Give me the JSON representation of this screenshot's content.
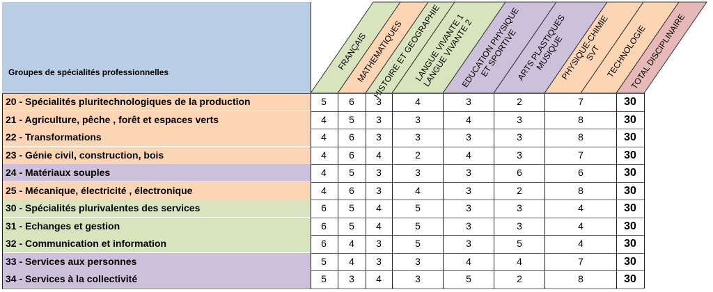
{
  "header": {
    "row_label": "Groupes de spécialités professionnelles",
    "columns": [
      {
        "lines": [
          "FRANÇAIS"
        ],
        "color": "#d7e4bd"
      },
      {
        "lines": [
          "MATHEMATIQUES"
        ],
        "color": "#fcd5b4"
      },
      {
        "lines": [
          "HISTOIRE ET GEOGRAPHIE"
        ],
        "color": "#d7e4bd"
      },
      {
        "lines": [
          "LANGUE VIVANTE 1",
          "LANGUE VIVANTE 2"
        ],
        "color": "#d7e4bd"
      },
      {
        "lines": [
          "EDUCATION PHYSIQUE",
          "ET SPORTIVE"
        ],
        "color": "#ccc0da"
      },
      {
        "lines": [
          "ARTS PLASTIQUES",
          "MUSIQUE"
        ],
        "color": "#ccc0da"
      },
      {
        "lines": [
          "PHYSIQUE-CHIMIE",
          "SVT"
        ],
        "color": "#fcd5b4"
      },
      {
        "lines": [
          "TECHNOLOGIE"
        ],
        "color": "#fcd5b4"
      },
      {
        "lines": [
          "TOTAL DISCIPLINAIRE"
        ],
        "color": "#e6b9b8"
      }
    ]
  },
  "rows": [
    {
      "label": "20 - Spécialités pluritechnologiques de la production",
      "color": "#fcd5b4",
      "values": [
        "5",
        "6",
        "3",
        "4",
        "3",
        "2",
        "7",
        "30"
      ]
    },
    {
      "label": "21 - Agriculture, pêche , forêt et espaces verts",
      "color": "#fcd5b4",
      "values": [
        "4",
        "5",
        "3",
        "3",
        "4",
        "3",
        "8",
        "30"
      ]
    },
    {
      "label": "22 - Transformations",
      "color": "#fcd5b4",
      "values": [
        "4",
        "6",
        "3",
        "3",
        "3",
        "3",
        "8",
        "30"
      ]
    },
    {
      "label": "23 - Génie civil, construction, bois",
      "color": "#fcd5b4",
      "values": [
        "4",
        "6",
        "4",
        "2",
        "4",
        "3",
        "7",
        "30"
      ]
    },
    {
      "label": "24 - Matériaux souples",
      "color": "#ccc0da",
      "values": [
        "4",
        "5",
        "3",
        "3",
        "3",
        "6",
        "6",
        "30"
      ]
    },
    {
      "label": "25 - Mécanique, électricité , électronique",
      "color": "#fcd5b4",
      "values": [
        "4",
        "6",
        "3",
        "4",
        "3",
        "2",
        "8",
        "30"
      ]
    },
    {
      "label": "30 - Spécialités plurivalentes des services",
      "color": "#d7e4bd",
      "values": [
        "6",
        "5",
        "4",
        "5",
        "3",
        "3",
        "4",
        "30"
      ]
    },
    {
      "label": "31 - Echanges et gestion",
      "color": "#d7e4bd",
      "values": [
        "6",
        "5",
        "4",
        "5",
        "3",
        "3",
        "4",
        "30"
      ]
    },
    {
      "label": "32 - Communication et information",
      "color": "#d7e4bd",
      "values": [
        "6",
        "4",
        "3",
        "5",
        "3",
        "5",
        "4",
        "30"
      ]
    },
    {
      "label": "33 - Services aux personnes",
      "color": "#ccc0da",
      "values": [
        "5",
        "4",
        "3",
        "3",
        "4",
        "4",
        "7",
        "30"
      ]
    },
    {
      "label": "34 - Services à la collectivité",
      "color": "#ccc0da",
      "values": [
        "5",
        "3",
        "4",
        "3",
        "5",
        "2",
        "8",
        "30"
      ]
    }
  ]
}
